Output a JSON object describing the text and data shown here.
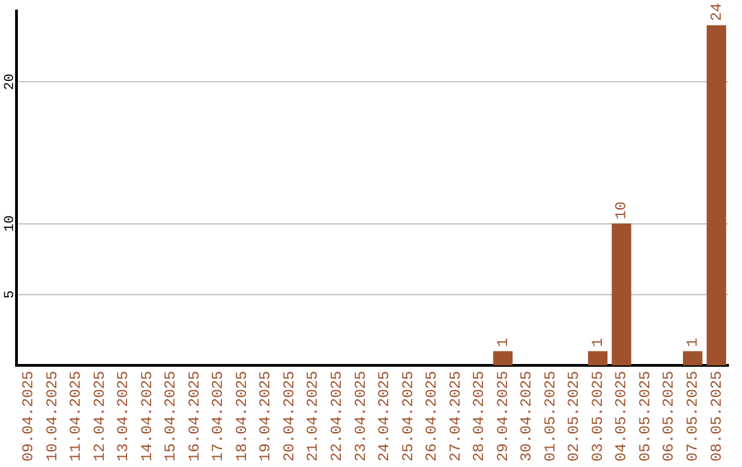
{
  "chart_data": {
    "type": "bar",
    "categories": [
      "09.04.2025",
      "10.04.2025",
      "11.04.2025",
      "12.04.2025",
      "13.04.2025",
      "14.04.2025",
      "15.04.2025",
      "16.04.2025",
      "17.04.2025",
      "18.04.2025",
      "19.04.2025",
      "20.04.2025",
      "21.04.2025",
      "22.04.2025",
      "23.04.2025",
      "24.04.2025",
      "25.04.2025",
      "26.04.2025",
      "27.04.2025",
      "28.04.2025",
      "29.04.2025",
      "30.04.2025",
      "01.05.2025",
      "02.05.2025",
      "03.05.2025",
      "04.05.2025",
      "05.05.2025",
      "06.05.2025",
      "07.05.2025",
      "08.05.2025"
    ],
    "values": [
      0,
      0,
      0,
      0,
      0,
      0,
      0,
      0,
      0,
      0,
      0,
      0,
      0,
      0,
      0,
      0,
      0,
      0,
      0,
      0,
      1,
      0,
      0,
      0,
      1,
      10,
      0,
      0,
      1,
      24
    ],
    "value_labels": [
      null,
      null,
      null,
      null,
      null,
      null,
      null,
      null,
      null,
      null,
      null,
      null,
      null,
      null,
      null,
      null,
      null,
      null,
      null,
      null,
      "1",
      null,
      null,
      null,
      "1",
      "10",
      null,
      null,
      "1",
      "24"
    ],
    "color": "#a0522d",
    "ylim": [
      0,
      25
    ],
    "yticks": [
      5,
      10,
      20
    ],
    "grid": "y"
  }
}
